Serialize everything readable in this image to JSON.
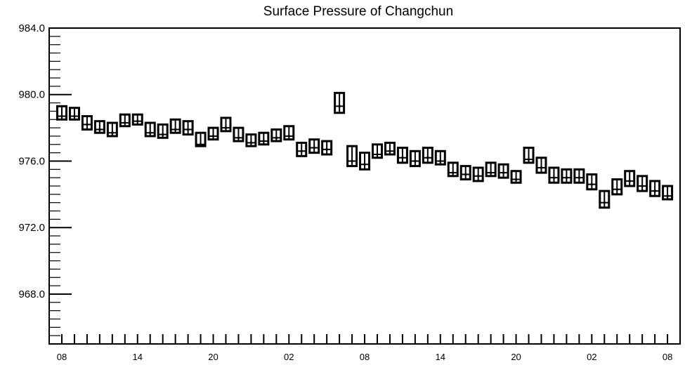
{
  "chart_data": {
    "type": "scatter",
    "title": "Surface Pressure of Changchun",
    "xlabel": "",
    "ylabel": "",
    "ylim": [
      965.0,
      984.0
    ],
    "y_ticks": [
      984.0,
      980.0,
      976.0,
      972.0,
      968.0
    ],
    "y_tick_labels": [
      "984.0",
      "980.0",
      "976.0",
      "972.0",
      "968.0"
    ],
    "x_tick_labels": [
      {
        "index": 0,
        "label": "08"
      },
      {
        "index": 6,
        "label": "14"
      },
      {
        "index": 12,
        "label": "20"
      },
      {
        "index": 18,
        "label": "02"
      },
      {
        "index": 24,
        "label": "08"
      },
      {
        "index": 30,
        "label": "14"
      },
      {
        "index": 36,
        "label": "20"
      },
      {
        "index": 42,
        "label": "02"
      },
      {
        "index": 48,
        "label": "08"
      }
    ],
    "grid": false,
    "series": [
      {
        "median": [
          978.7,
          978.7,
          978.2,
          977.9,
          977.7,
          978.3,
          978.4,
          977.7,
          977.6,
          977.9,
          977.9,
          977.0,
          977.5,
          978.0,
          977.4,
          977.1,
          977.2,
          977.4,
          977.5,
          976.6,
          976.8,
          976.7,
          979.3,
          976.0,
          975.8,
          976.4,
          976.6,
          976.2,
          976.0,
          976.2,
          976.0,
          975.3,
          975.2,
          975.1,
          975.3,
          975.3,
          974.9,
          976.1,
          975.6,
          975.0,
          975.0,
          975.0,
          974.6,
          973.5,
          974.3,
          974.8,
          974.5,
          974.2,
          973.9
        ],
        "upper": [
          979.3,
          979.2,
          978.7,
          978.4,
          978.3,
          978.8,
          978.8,
          978.3,
          978.2,
          978.5,
          978.4,
          977.7,
          978.0,
          978.6,
          978.0,
          977.6,
          977.7,
          977.9,
          978.1,
          977.1,
          977.3,
          977.2,
          980.1,
          976.9,
          976.5,
          977.0,
          977.1,
          976.8,
          976.6,
          976.8,
          976.6,
          975.9,
          975.7,
          975.6,
          975.9,
          975.8,
          975.4,
          976.8,
          976.2,
          975.6,
          975.5,
          975.5,
          975.2,
          974.2,
          974.9,
          975.4,
          975.1,
          974.8,
          974.5
        ],
        "lower": [
          978.5,
          978.5,
          977.9,
          977.7,
          977.5,
          978.1,
          978.2,
          977.5,
          977.4,
          977.7,
          977.6,
          976.9,
          977.3,
          977.8,
          977.2,
          976.9,
          977.0,
          977.2,
          977.3,
          976.3,
          976.5,
          976.4,
          978.9,
          975.7,
          975.5,
          976.2,
          976.4,
          975.9,
          975.7,
          975.9,
          975.8,
          975.1,
          974.9,
          974.8,
          975.1,
          975.0,
          974.7,
          975.9,
          975.3,
          974.7,
          974.7,
          974.7,
          974.3,
          973.2,
          974.0,
          974.5,
          974.2,
          973.9,
          973.7
        ]
      }
    ]
  }
}
